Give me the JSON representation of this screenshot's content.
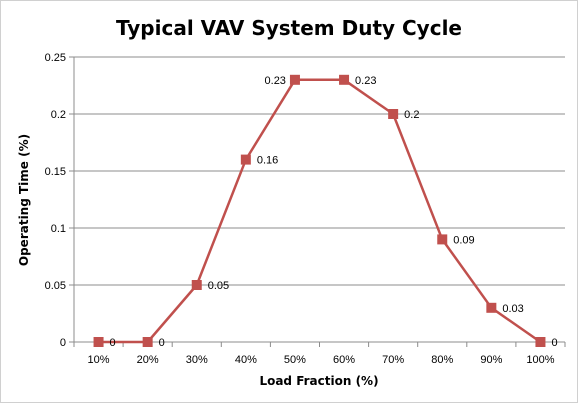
{
  "chart_data": {
    "type": "line",
    "title": "Typical VAV System Duty Cycle",
    "xlabel": "Load Fraction (%)",
    "ylabel": "Operating Time (%)",
    "categories": [
      "10%",
      "20%",
      "30%",
      "40%",
      "50%",
      "60%",
      "70%",
      "80%",
      "90%",
      "100%"
    ],
    "series": [
      {
        "values": [
          0,
          0,
          0.05,
          0.16,
          0.23,
          0.23,
          0.2,
          0.09,
          0.03,
          0
        ],
        "data_labels": [
          "0",
          "0",
          "0.05",
          "0.16",
          "0.23",
          "0.23",
          "0.2",
          "0.09",
          "0.03",
          "0"
        ],
        "color": "#c0504d"
      }
    ],
    "ylim": [
      0,
      0.25
    ],
    "yticks": [
      0,
      0.05,
      0.1,
      0.15,
      0.2,
      0.25
    ],
    "ytick_labels": [
      "0",
      "0.05",
      "0.1",
      "0.15",
      "0.2",
      "0.25"
    ],
    "grid": "horizontal",
    "gridline_color": "#8c8c8c",
    "axis_color": "#8c8c8c",
    "legend": "none"
  }
}
